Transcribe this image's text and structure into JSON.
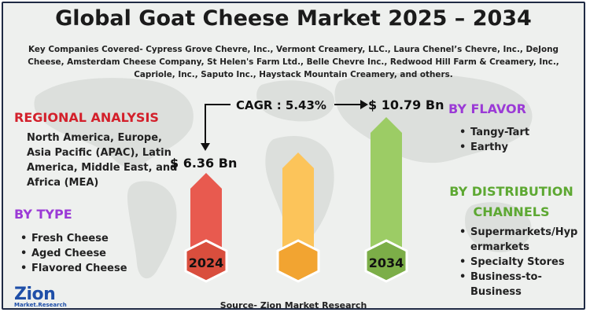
{
  "title": "Global Goat Cheese Market 2025 – 2034",
  "companies": "Key Companies Covered- Cypress Grove Chevre, Inc., Vermont Creamery, LLC., Laura Chenel’s Chevre, Inc., DeJong Cheese, Amsterdam Cheese Company, St Helen's Farm Ltd., Belle Chevre Inc., Redwood Hill Farm & Creamery, Inc., Capriole, Inc., Saputo Inc., Haystack Mountain Creamery, and others.",
  "regional": {
    "heading": "REGIONAL ANALYSIS",
    "text": "North America, Europe, Asia Pacific (APAC), Latin America, Middle East, and Africa (MEA)"
  },
  "by_type": {
    "heading": "BY TYPE",
    "items": [
      "Fresh Cheese",
      "Aged Cheese",
      "Flavored Cheese"
    ]
  },
  "by_flavor": {
    "heading": "BY FLAVOR",
    "items": [
      "Tangy-Tart",
      "Earthy"
    ]
  },
  "by_distribution": {
    "heading_line1": "BY DISTRIBUTION",
    "heading_line2": "CHANNELS",
    "items": [
      "Supermarkets/Hyp ermarkets",
      "Specialty Stores",
      "Business-to- Business"
    ]
  },
  "market": {
    "cagr_label": "CAGR : 5.43%",
    "value_2024": "$ 6.36 Bn",
    "value_2034": "$ 10.79 Bn",
    "year_start": "2024",
    "year_end": "2034"
  },
  "source": "Source- Zion Market Research",
  "logo": {
    "word": "Zion",
    "sub": "Market.Research"
  },
  "colors": {
    "red": "#d3202b",
    "purple": "#9b3ad6",
    "green": "#5da832",
    "bar_red": "#e85a4f",
    "bar_yellow": "#f7b731",
    "bar_green": "#8cc152"
  }
}
